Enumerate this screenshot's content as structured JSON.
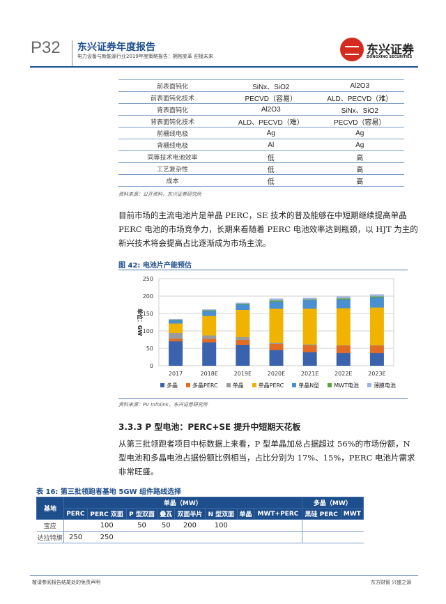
{
  "header": {
    "page": "P32",
    "title": "东兴证券年度报告",
    "subtitle": "电力设备与新能源行业2019年度策略报告：拥抱变革 迎接未来",
    "logo_cn": "东兴证券",
    "logo_en": "DONGXING SECURITIES"
  },
  "compare_table": {
    "rows": [
      [
        "前表面钝化",
        "SiNx、SiO2",
        "Al2O3"
      ],
      [
        "前表面钝化技术",
        "PECVD（容易）",
        "ALD、PECVD（难）"
      ],
      [
        "背表面钝化",
        "Al2O3",
        "SiNx、SiO2"
      ],
      [
        "背表面钝化技术",
        "ALD、PECVD（难）",
        "PECVD（容易）"
      ],
      [
        "前栅线电极",
        "Ag",
        "Ag"
      ],
      [
        "背栅线电极",
        "Al",
        "Ag"
      ],
      [
        "同等技术电池效率",
        "低",
        "高"
      ],
      [
        "工艺复杂性",
        "低",
        "高"
      ],
      [
        "成本",
        "低",
        "高"
      ]
    ],
    "source": "资料来源：公开资料，东兴证券研究所"
  },
  "para1": "目前市场的主流电池片是单晶 PERC，SE 技术的普及能够在中短期继续提高单晶 PERC 电池的市场竞争力，长期来看随着 PERC 电池效率达到瓶颈，以 HJT 为主的新兴技术将会提高占比逐渐成为市场主流。",
  "figure_caption": "图 42: 电池片产能预估",
  "chart_data": {
    "type": "bar",
    "stacked": true,
    "ylabel": "单位：GW",
    "ylim": [
      0,
      250
    ],
    "yticks": [
      0,
      50,
      100,
      150,
      200,
      250
    ],
    "grid": true,
    "legend_position": "bottom",
    "categories": [
      "2017",
      "2018E",
      "2019E",
      "2020E",
      "2021E",
      "2022E",
      "2023E"
    ],
    "series": [
      {
        "name": "多晶",
        "color": "#3a62ad",
        "values": [
          70,
          67,
          60,
          45,
          39,
          36,
          36
        ]
      },
      {
        "name": "多晶PERC",
        "color": "#e06c25",
        "values": [
          7,
          10,
          14,
          17,
          20,
          22,
          22
        ]
      },
      {
        "name": "单晶",
        "color": "#9b9b9b",
        "values": [
          17,
          10,
          8,
          4,
          2,
          1,
          1
        ]
      },
      {
        "name": "单晶PERC",
        "color": "#f0b400",
        "values": [
          27,
          56,
          78,
          98,
          103,
          106,
          108
        ]
      },
      {
        "name": "单晶N型",
        "color": "#4a8fd0",
        "values": [
          10,
          14,
          16,
          20,
          24,
          25,
          29
        ]
      },
      {
        "name": "MWT电池",
        "color": "#5fa43a",
        "values": [
          1,
          2,
          2,
          3,
          2,
          3,
          3
        ]
      },
      {
        "name": "薄膜电池",
        "color": "#a0b4e0",
        "values": [
          2,
          3,
          3,
          6,
          5,
          6,
          6
        ]
      }
    ]
  },
  "figure_source": "资料来源：PV Infolink，东兴证券研究所",
  "section_title": "3.3.3 P 型电池：PERC+SE 提升中短期天花板",
  "para2": "从第三批领跑者项目中标数据上来看，P 型单晶加总占据超过 56%的市场份额，N 型电池和多晶电池占据份额比例相当，占比分别为 17%、15%，PERC 电池片需求非常旺盛。",
  "route_table": {
    "caption": "表 16: 第三批领跑者基地 5GW 组件路线选择",
    "col_base": "基地",
    "group_mono": "单晶（MW）",
    "group_poly": "多晶（MW）",
    "cols": [
      "PERC",
      "PERC 双面",
      "P 型双面",
      "叠瓦",
      "双面半片",
      "N 型双面",
      "单晶",
      "MWT+PERC",
      "黑硅 PERC",
      "MWT"
    ],
    "rows": [
      {
        "name": "宝应",
        "values": [
          "",
          "100",
          "50",
          "50",
          "200",
          "100",
          "",
          "",
          "",
          ""
        ]
      },
      {
        "name": "达拉特旗",
        "values": [
          "250",
          "250",
          "",
          "",
          "",
          "",
          "",
          "",
          "",
          ""
        ]
      }
    ]
  },
  "footer": {
    "left": "敬请参阅报告结尾处的免责声明",
    "right": "东方财智 兴盛之源"
  }
}
